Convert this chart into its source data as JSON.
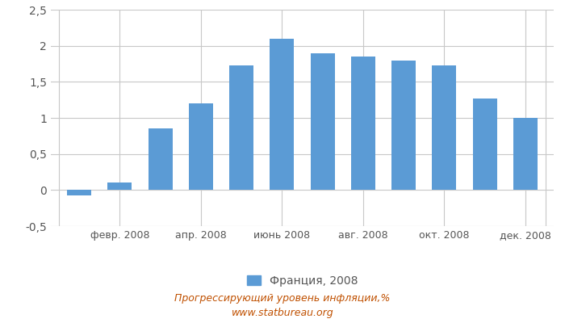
{
  "months_count": 12,
  "xtick_positions": [
    1,
    3,
    5,
    7,
    9,
    11
  ],
  "xtick_labels": [
    "февр. 2008",
    "апр. 2008",
    "июнь 2008",
    "авг. 2008",
    "окт. 2008",
    "дек. 2008"
  ],
  "values": [
    -0.07,
    0.1,
    0.85,
    1.2,
    1.73,
    2.1,
    1.9,
    1.85,
    1.8,
    1.73,
    1.27,
    1.0
  ],
  "bar_color": "#5b9bd5",
  "ylim": [
    -0.5,
    2.5
  ],
  "yticks": [
    -0.5,
    0,
    0.5,
    1.0,
    1.5,
    2.0,
    2.5
  ],
  "ytick_labels": [
    "-0,5",
    "0",
    "0,5",
    "1",
    "1,5",
    "2",
    "2,5"
  ],
  "legend_label": "Франция, 2008",
  "title_line1": "Прогрессирующий уровень инфляции,%",
  "title_line2": "www.statbureau.org",
  "background_color": "#ffffff",
  "grid_color": "#c8c8c8",
  "text_color": "#555555",
  "title_color": "#c05000"
}
